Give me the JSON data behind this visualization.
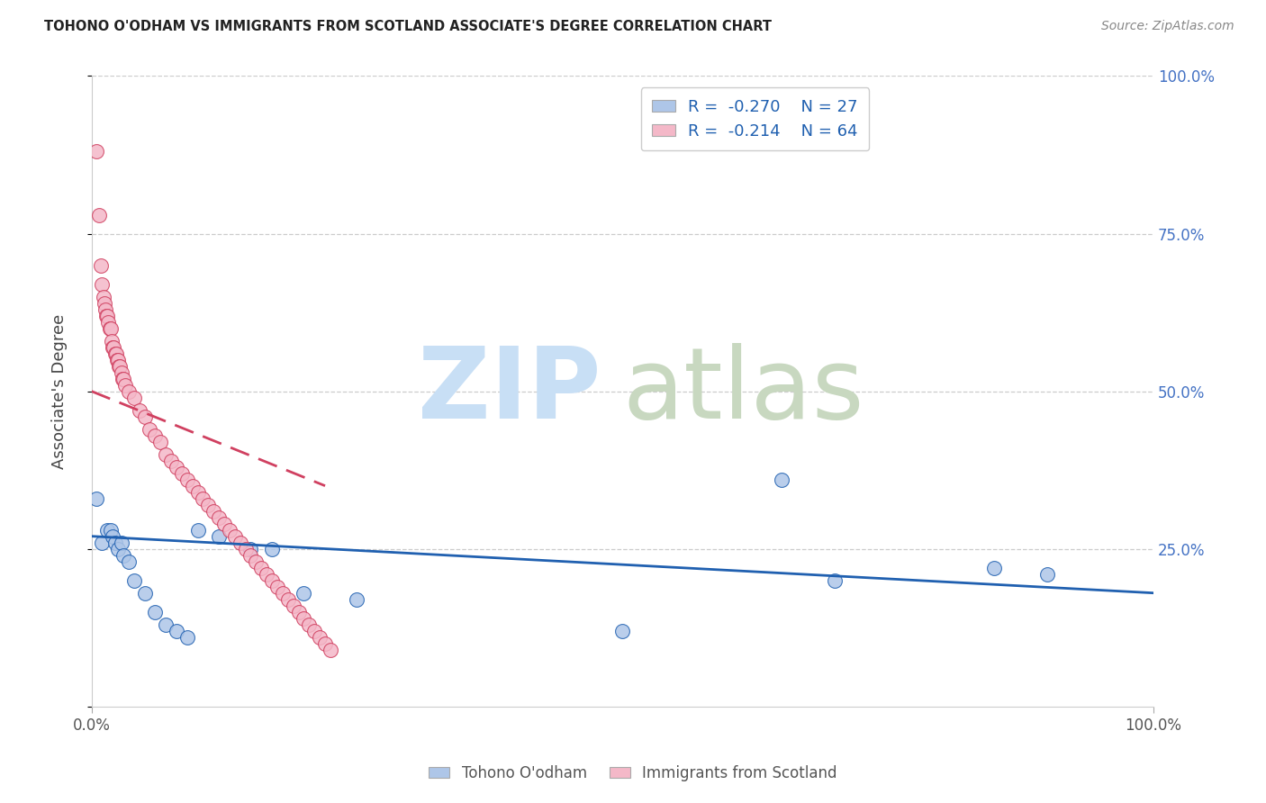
{
  "title": "TOHONO O'ODHAM VS IMMIGRANTS FROM SCOTLAND ASSOCIATE'S DEGREE CORRELATION CHART",
  "source": "Source: ZipAtlas.com",
  "ylabel": "Associate's Degree",
  "color_blue": "#aec6e8",
  "color_pink": "#f4b8c8",
  "line_blue": "#2060b0",
  "line_pink": "#d04060",
  "grid_color": "#cccccc",
  "right_tick_color": "#4472c4",
  "title_color": "#222222",
  "source_color": "#888888",
  "legend_r1": "-0.270",
  "legend_n1": "27",
  "legend_r2": "-0.214",
  "legend_n2": "64",
  "tohono_x": [
    0.5,
    1.0,
    1.5,
    1.8,
    2.0,
    2.2,
    2.5,
    2.8,
    3.0,
    3.5,
    4.0,
    5.0,
    6.0,
    7.0,
    8.0,
    9.0,
    10.0,
    12.0,
    15.0,
    20.0,
    25.0,
    17.0,
    50.0,
    65.0,
    70.0,
    85.0,
    90.0
  ],
  "tohono_y": [
    33,
    26,
    28,
    28,
    27,
    26,
    25,
    26,
    24,
    23,
    20,
    18,
    15,
    13,
    12,
    11,
    28,
    27,
    25,
    18,
    17,
    25,
    12,
    36,
    20,
    22,
    21
  ],
  "scotland_x": [
    0.5,
    0.7,
    0.9,
    1.0,
    1.1,
    1.2,
    1.3,
    1.4,
    1.5,
    1.6,
    1.7,
    1.8,
    1.9,
    2.0,
    2.1,
    2.2,
    2.3,
    2.4,
    2.5,
    2.6,
    2.7,
    2.8,
    2.9,
    3.0,
    3.2,
    3.5,
    4.0,
    4.5,
    5.0,
    5.5,
    6.0,
    6.5,
    7.0,
    7.5,
    8.0,
    8.5,
    9.0,
    9.5,
    10.0,
    10.5,
    11.0,
    11.5,
    12.0,
    12.5,
    13.0,
    13.5,
    14.0,
    14.5,
    15.0,
    15.5,
    16.0,
    16.5,
    17.0,
    17.5,
    18.0,
    18.5,
    19.0,
    19.5,
    20.0,
    20.5,
    21.0,
    21.5,
    22.0,
    22.5
  ],
  "scotland_y": [
    88,
    78,
    70,
    67,
    65,
    64,
    63,
    62,
    62,
    61,
    60,
    60,
    58,
    57,
    57,
    56,
    56,
    55,
    55,
    54,
    54,
    53,
    52,
    52,
    51,
    50,
    49,
    47,
    46,
    44,
    43,
    42,
    40,
    39,
    38,
    37,
    36,
    35,
    34,
    33,
    32,
    31,
    30,
    29,
    28,
    27,
    26,
    25,
    24,
    23,
    22,
    21,
    20,
    19,
    18,
    17,
    16,
    15,
    14,
    13,
    12,
    11,
    10,
    9
  ]
}
